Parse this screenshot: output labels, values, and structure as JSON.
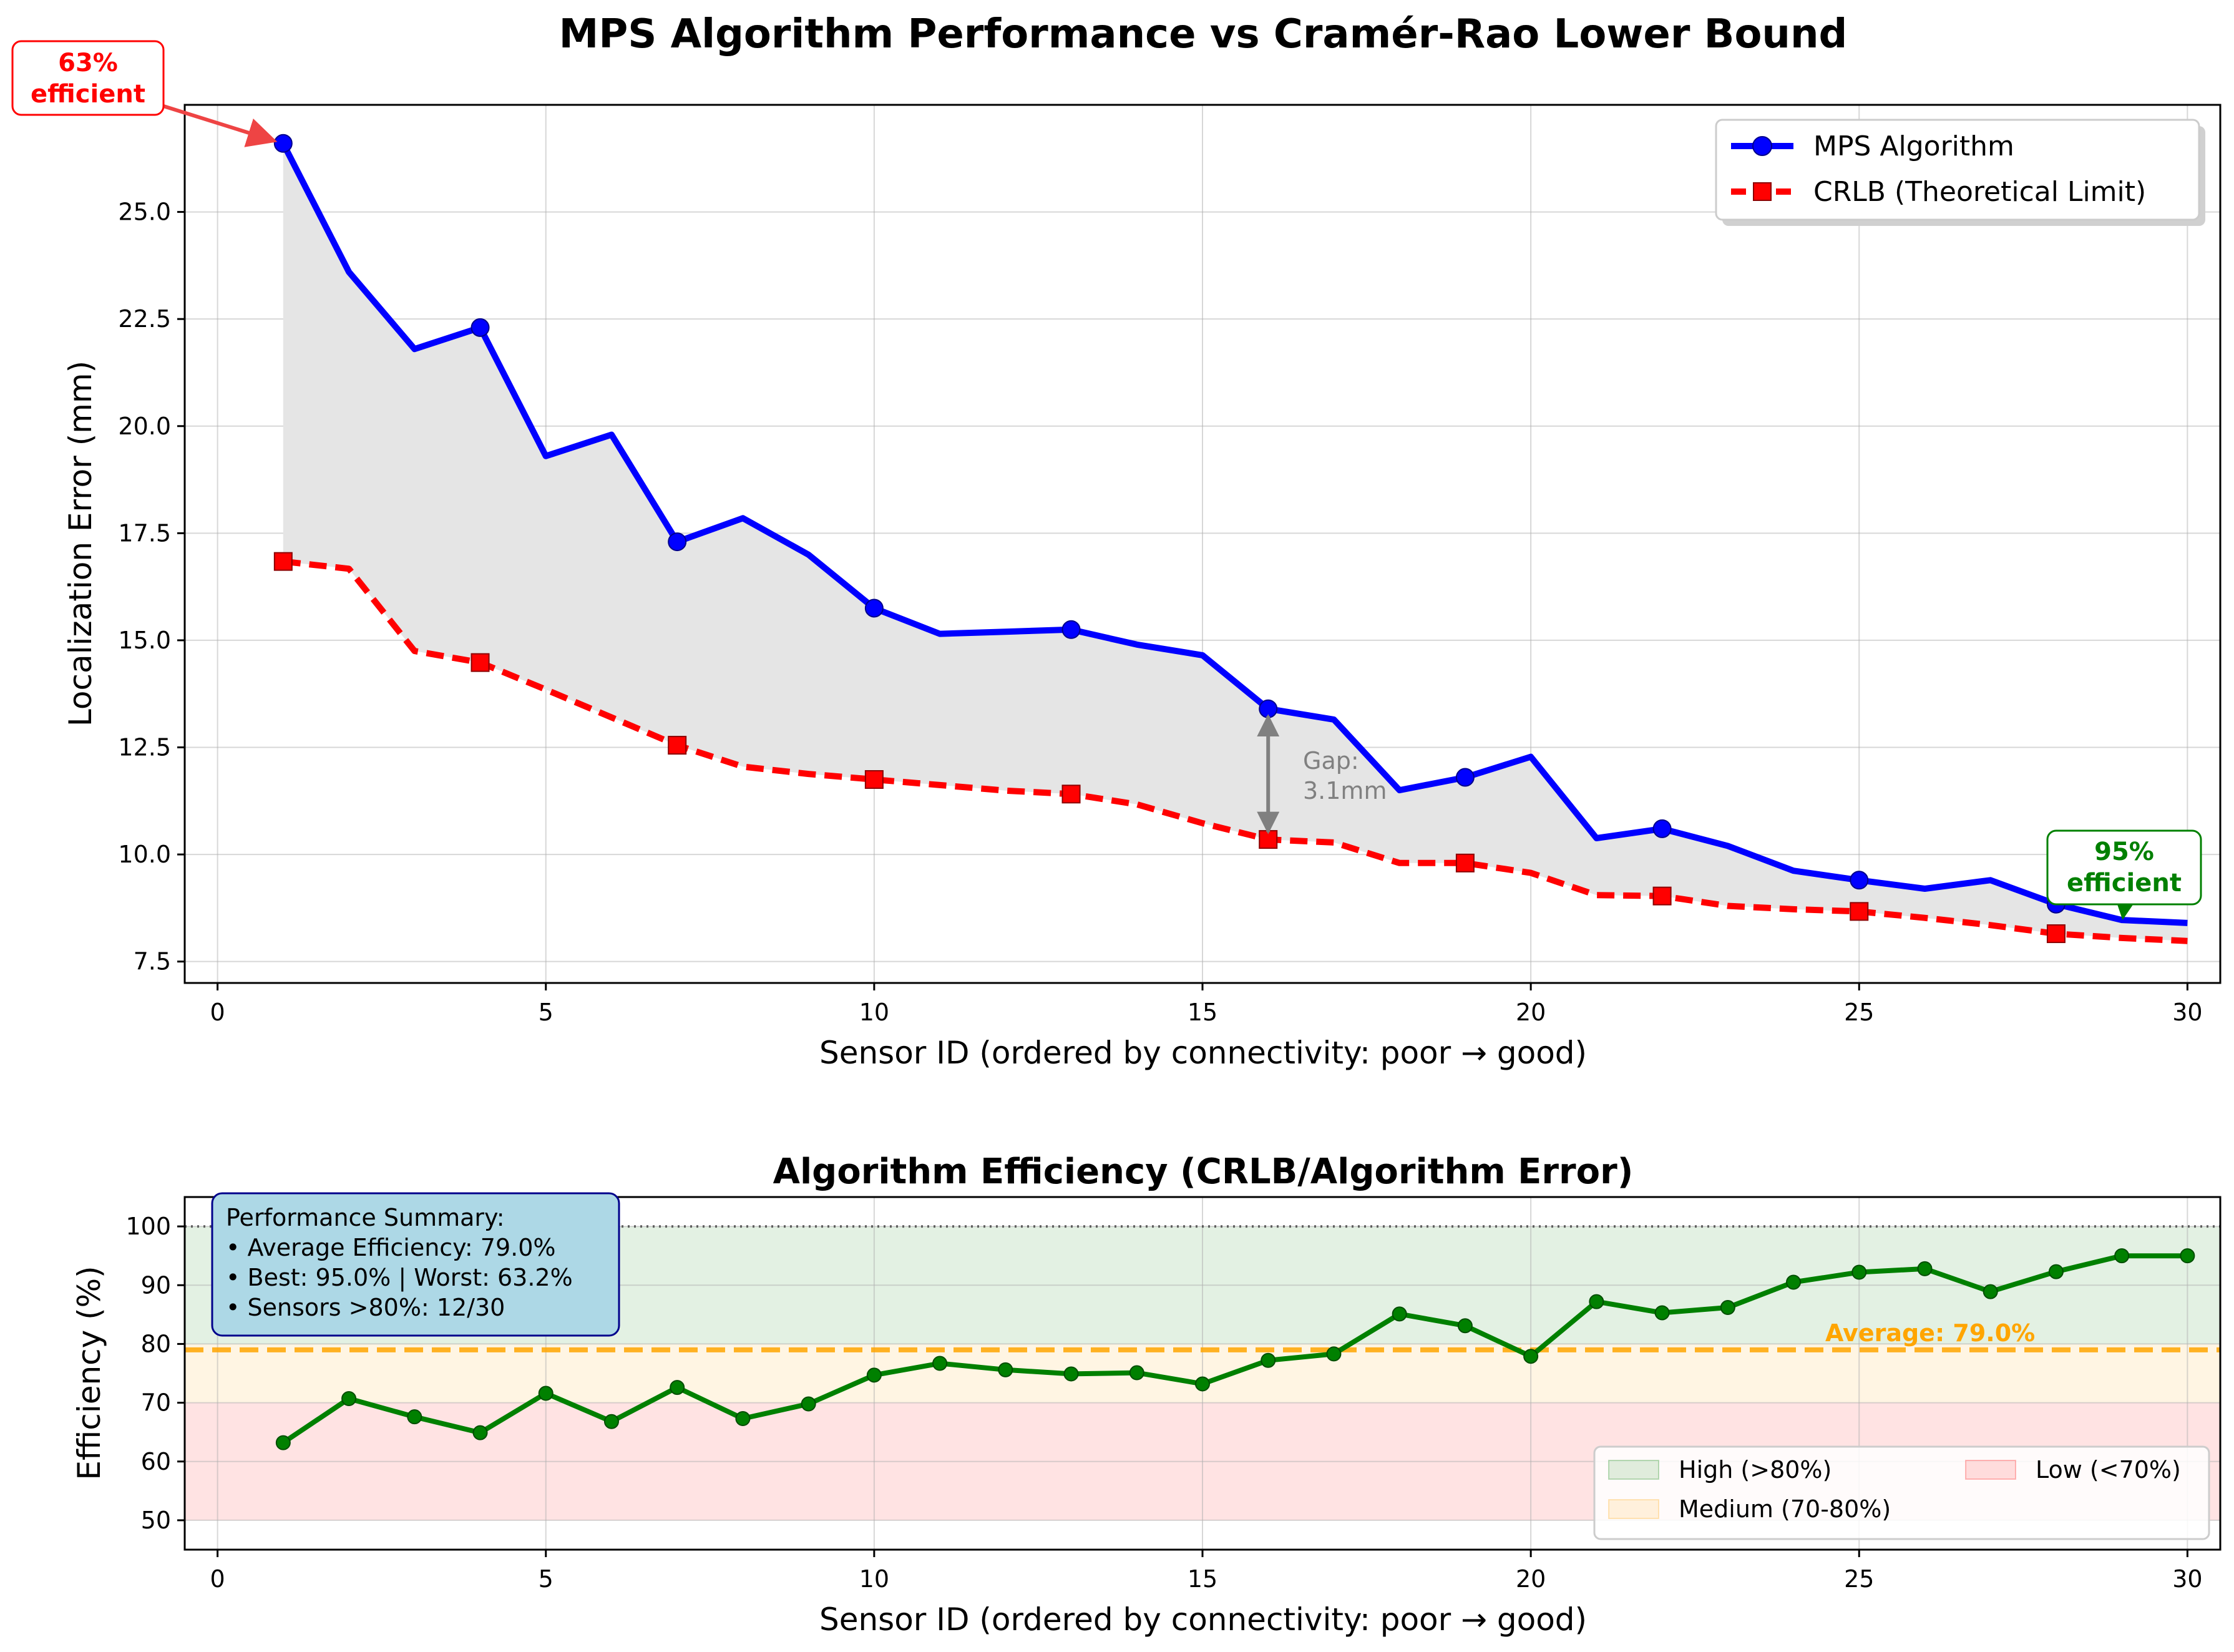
{
  "chart_data": [
    {
      "type": "line",
      "title": "MPS Algorithm Performance vs Cramér-Rao Lower Bound",
      "xlabel": "Sensor ID (ordered by connectivity: poor → good)",
      "ylabel": "Localization Error (mm)",
      "xlim": [
        -0.5,
        30.5
      ],
      "ylim": [
        7.0,
        27.5
      ],
      "xticks": [
        0,
        5,
        10,
        15,
        20,
        25,
        30
      ],
      "xtick_labels": [
        "0",
        "5",
        "10",
        "15",
        "20",
        "25",
        "30"
      ],
      "yticks": [
        7.5,
        10.0,
        12.5,
        15.0,
        17.5,
        20.0,
        22.5,
        25.0
      ],
      "ytick_labels": [
        "7.5",
        "10.0",
        "12.5",
        "15.0",
        "17.5",
        "20.0",
        "22.5",
        "25.0"
      ],
      "grid": true,
      "legend_position": "top-right",
      "x": [
        1,
        2,
        3,
        4,
        5,
        6,
        7,
        8,
        9,
        10,
        11,
        12,
        13,
        14,
        15,
        16,
        17,
        18,
        19,
        20,
        21,
        22,
        23,
        24,
        25,
        26,
        27,
        28,
        29,
        30
      ],
      "series": [
        {
          "name": "MPS Algorithm",
          "color": "#0000ff",
          "marker": "circle",
          "line_style": "solid",
          "values": [
            26.6,
            23.6,
            21.8,
            22.3,
            19.3,
            19.8,
            17.3,
            17.85,
            17.0,
            15.75,
            15.15,
            15.2,
            15.25,
            14.9,
            14.65,
            13.4,
            13.15,
            11.5,
            11.8,
            12.28,
            10.38,
            10.6,
            10.2,
            9.62,
            9.4,
            9.2,
            9.4,
            8.84,
            8.47,
            8.4
          ]
        },
        {
          "name": "CRLB (Theoretical Limit)",
          "color": "#ff0000",
          "marker": "square",
          "line_style": "dashed",
          "values": [
            16.84,
            16.67,
            14.75,
            14.48,
            13.85,
            13.2,
            12.55,
            12.05,
            11.88,
            11.75,
            11.62,
            11.49,
            11.41,
            11.17,
            10.73,
            10.35,
            10.28,
            9.8,
            9.8,
            9.57,
            9.05,
            9.03,
            8.8,
            8.72,
            8.67,
            8.52,
            8.35,
            8.15,
            8.05,
            7.98
          ]
        }
      ],
      "fill_between": {
        "color": "#e5e5e5",
        "between": [
          "MPS Algorithm",
          "CRLB (Theoretical Limit)"
        ]
      },
      "annotations": [
        {
          "text_lines": [
            "63%",
            "efficient"
          ],
          "color": "#ff0000",
          "points_to": [
            1,
            26.6
          ]
        },
        {
          "text_lines": [
            "95%",
            "efficient"
          ],
          "color": "#008000",
          "points_to": [
            29,
            8.47
          ]
        },
        {
          "text_lines": [
            "Gap:",
            "3.1mm"
          ],
          "color": "#808080",
          "at_x": 16,
          "y_from": 13.4,
          "y_to": 10.35
        }
      ]
    },
    {
      "type": "line",
      "title": "Algorithm Efficiency (CRLB/Algorithm Error)",
      "xlabel": "Sensor ID (ordered by connectivity: poor → good)",
      "ylabel": "Efficiency (%)",
      "xlim": [
        -0.5,
        30.5
      ],
      "ylim": [
        45,
        105
      ],
      "xticks": [
        0,
        5,
        10,
        15,
        20,
        25,
        30
      ],
      "xtick_labels": [
        "0",
        "5",
        "10",
        "15",
        "20",
        "25",
        "30"
      ],
      "yticks": [
        50,
        60,
        70,
        80,
        90,
        100
      ],
      "ytick_labels": [
        "50",
        "60",
        "70",
        "80",
        "90",
        "100"
      ],
      "grid": true,
      "legend_position": "bottom-right",
      "x": [
        1,
        2,
        3,
        4,
        5,
        6,
        7,
        8,
        9,
        10,
        11,
        12,
        13,
        14,
        15,
        16,
        17,
        18,
        19,
        20,
        21,
        22,
        23,
        24,
        25,
        26,
        27,
        28,
        29,
        30
      ],
      "series": [
        {
          "name": "",
          "color": "#008000",
          "marker": "circle",
          "values": [
            63.2,
            70.7,
            67.6,
            64.9,
            71.6,
            66.8,
            72.6,
            67.3,
            69.8,
            74.7,
            76.7,
            75.6,
            74.9,
            75.1,
            73.2,
            77.2,
            78.3,
            85.1,
            83.1,
            77.9,
            87.2,
            85.3,
            86.2,
            90.5,
            92.2,
            92.8,
            88.9,
            92.3,
            95.0,
            95.0
          ]
        }
      ],
      "bands": [
        {
          "label": "High (>80%)",
          "from": 80,
          "to": 100,
          "color": "#008000"
        },
        {
          "label": "Medium (70-80%)",
          "from": 70,
          "to": 80,
          "color": "#ffa500"
        },
        {
          "label": "Low (<70%)",
          "from": 50,
          "to": 70,
          "color": "#ff0000"
        }
      ],
      "reference_lines": [
        {
          "y": 100,
          "style": "dotted",
          "color": "#404040"
        },
        {
          "y": 79.0,
          "style": "dashed",
          "color": "#ffa500",
          "label": "Average: 79.0%"
        }
      ],
      "summary_box": [
        "Performance Summary:",
        "• Average Efficiency: 79.0%",
        "• Best: 95.0% | Worst: 63.2%",
        "• Sensors >80%: 12/30"
      ]
    }
  ]
}
